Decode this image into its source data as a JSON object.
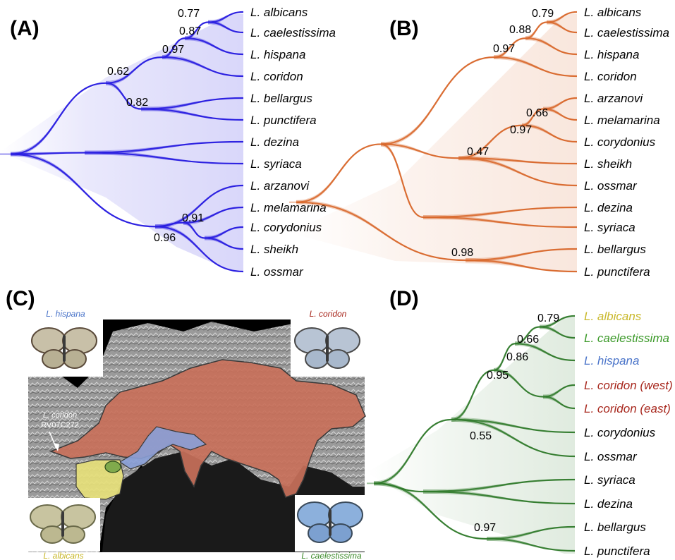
{
  "panels": {
    "A": {
      "label": "(A)",
      "color": "#2a1fe0",
      "taxa": [
        "L. albicans",
        "L. caelestissima",
        "L. hispana",
        "L. coridon",
        "L. bellargus",
        "L. punctifera",
        "L. dezina",
        "L. syriaca",
        "L. arzanovi",
        "L. melamarina",
        "L. corydonius",
        "L. sheikh",
        "L. ossmar"
      ],
      "support": [
        "0.77",
        "0.87",
        "0.97",
        "0.62",
        "0.82",
        "0.91",
        "0.96"
      ]
    },
    "B": {
      "label": "(B)",
      "color": "#d8672a",
      "taxa": [
        "L. albicans",
        "L. caelestissima",
        "L. hispana",
        "L. coridon",
        "L. arzanovi",
        "L. melamarina",
        "L. corydonius",
        "L. sheikh",
        "L. ossmar",
        "L. dezina",
        "L. syriaca",
        "L. bellargus",
        "L. punctifera"
      ],
      "support": [
        "0.79",
        "0.88",
        "0.97",
        "0.66",
        "0.97",
        "0.47",
        "0.98"
      ]
    },
    "C": {
      "label": "(C)",
      "labels": {
        "hispana": "L. hispana",
        "coridon": "L. coridon",
        "albicans": "L. albicans",
        "caelestissima": "L. caelestissima",
        "sample_line1": "L. coridon",
        "sample_line2": "RV07C272"
      },
      "colors": {
        "hispana": "#4a74c9",
        "coridon": "#a8281e",
        "albicans": "#c9b82a",
        "caelestissima": "#3c8a2a"
      }
    },
    "D": {
      "label": "(D)",
      "color": "#2f7a2a",
      "taxa": [
        "L. albicans",
        "L. caelestissima",
        "L. hispana",
        "L. coridon (west)",
        "L. coridon (east)",
        "L. corydonius",
        "L. ossmar",
        "L. syriaca",
        "L. dezina",
        "L. bellargus",
        "L. punctifera"
      ],
      "taxa_colors": [
        "#c9b82a",
        "#3c9a2a",
        "#4a74c9",
        "#a8281e",
        "#a8281e",
        "#000000",
        "#000000",
        "#000000",
        "#000000",
        "#000000",
        "#000000"
      ],
      "support": [
        "0.79",
        "0.66",
        "0.86",
        "0.95",
        "0.55",
        "0.97"
      ]
    }
  }
}
